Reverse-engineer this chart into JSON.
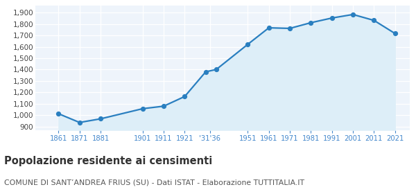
{
  "years": [
    1861,
    1871,
    1881,
    1901,
    1911,
    1921,
    1931,
    1936,
    1951,
    1961,
    1971,
    1981,
    1991,
    2001,
    2011,
    2021
  ],
  "population": [
    1013,
    936,
    968,
    1057,
    1079,
    1164,
    1381,
    1401,
    1622,
    1767,
    1762,
    1812,
    1853,
    1884,
    1832,
    1717
  ],
  "line_color": "#2a7fc0",
  "fill_color": "#ddeef8",
  "marker_color": "#2a7fc0",
  "bg_color": "#eef4fb",
  "grid_color": "#ffffff",
  "tick_label_color": "#4488cc",
  "ylim": [
    870,
    1960
  ],
  "yticks": [
    900,
    1000,
    1100,
    1200,
    1300,
    1400,
    1500,
    1600,
    1700,
    1800,
    1900
  ],
  "xtick_positions": [
    1861,
    1871,
    1881,
    1901,
    1911,
    1921,
    1933,
    1951,
    1961,
    1971,
    1981,
    1991,
    2001,
    2011,
    2021
  ],
  "xtick_labels": [
    "1861",
    "1871",
    "1881",
    "1901",
    "1911",
    "1921",
    "'31'36",
    "1951",
    "1961",
    "1971",
    "1981",
    "1991",
    "2001",
    "2011",
    "2021"
  ],
  "xlim": [
    1850,
    2028
  ],
  "title": "Popolazione residente ai censimenti",
  "subtitle": "COMUNE DI SANT’ANDREA FRIUS (SU) - Dati ISTAT - Elaborazione TUTTITALIA.IT",
  "title_fontsize": 10.5,
  "subtitle_fontsize": 7.8
}
